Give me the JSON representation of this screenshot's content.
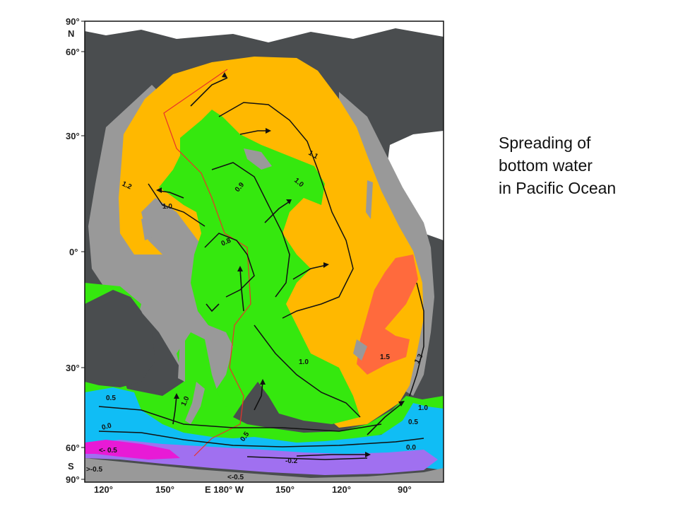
{
  "caption": {
    "lines": [
      "Spreading of",
      "bottom water",
      "in Pacific Ocean"
    ]
  },
  "lat_labels": {
    "n90": "90°",
    "n": "N",
    "n60": "60°",
    "n30": "30°",
    "eq": "0°",
    "s30": "30°",
    "s60": "60°",
    "s": "S",
    "s90": "90°"
  },
  "lon_labels": {
    "e120": "120°",
    "e150": "150°",
    "e180w": "E 180° W",
    "w150": "150°",
    "w120": "120°",
    "w90": "90°"
  },
  "contour_labels": {
    "v1_1": "1.1",
    "v1_0_a": "1.0",
    "v1_2": "1.2",
    "v1_0_b": "1.0",
    "v0_9": "0.9",
    "v0_8": "0.8",
    "v1_0_c": "1.0",
    "v1_5": "1.5",
    "v1_3": "1.3",
    "v1_0_d": "1.0",
    "v0_5_a": "0.5",
    "v0_5_b": "0.5",
    "v0_0_a": "0.0",
    "v1_0_e": "1.0",
    "v0_5_c": "0.5",
    "v0_0_b": "0.0",
    "v0_5_d": "<- 0.5",
    "v0_5_e": ">-0.5",
    "v0_2": "-0.2",
    "v0_5_f": "<-0.5"
  },
  "colors": {
    "land": "#4a4d4f",
    "shelf": "#999999",
    "temp_above_1_5": "#ff6a3d",
    "temp_1_0_to_1_5": "#ffb800",
    "temp_0_5_to_1_0": "#35e80e",
    "temp_0_0_to_0_5": "#10bdf5",
    "temp_neg_0_5_to_0": "#a070f0",
    "temp_below_neg_0_5": "#e81ad6",
    "ridge_line": "#e8322a",
    "contour_line": "#111111"
  }
}
